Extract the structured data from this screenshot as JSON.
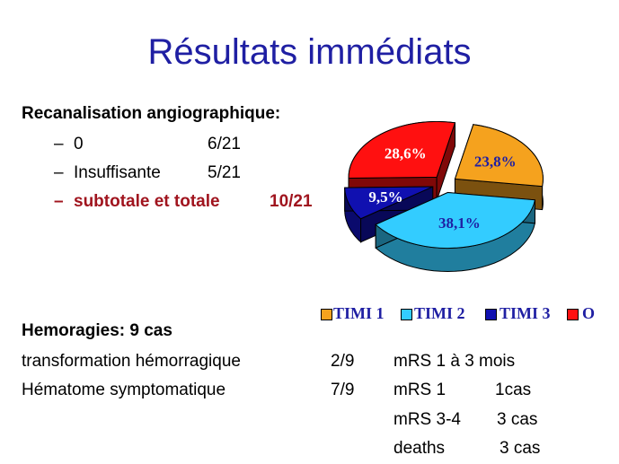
{
  "slide": {
    "title": "Résultats immédiats"
  },
  "recanalisation": {
    "heading": "Recanalisation angiographique:",
    "items": [
      {
        "dash": "–",
        "label": "0",
        "value": "6/21"
      },
      {
        "dash": "–",
        "label": "Insuffisante",
        "value": "5/21"
      },
      {
        "dash": "–",
        "label": "subtotale et totale",
        "value": "10/21"
      }
    ]
  },
  "hemorragies": {
    "heading": "Hemoragies: 9 cas",
    "rows": [
      {
        "label": "transformation hémorragique",
        "value": "2/9",
        "note": "mRS 1 à 3 mois"
      },
      {
        "label": "Hématome symptomatique",
        "value": "7/9",
        "note_a": "mRS 1",
        "note_b": "1cas"
      }
    ],
    "extra": [
      {
        "label": "mRS 3-4",
        "value": "3 cas"
      },
      {
        "label": "deaths",
        "value": "3 cas"
      }
    ]
  },
  "chart_data": {
    "type": "pie",
    "title": "",
    "legend_position": "bottom",
    "slices": [
      {
        "name": "TIMI 1",
        "value": 23.8,
        "label": "23,8%",
        "color": "#f5a21e"
      },
      {
        "name": "TIMI 2",
        "value": 38.1,
        "label": "38,1%",
        "color": "#33ccff"
      },
      {
        "name": "TIMI 3",
        "value": 9.5,
        "label": "9,5%",
        "color": "#1010b0"
      },
      {
        "name": "O",
        "value": 28.6,
        "label": "28,6%",
        "color": "#ff1010"
      }
    ],
    "label_colors": [
      "#1f1fa3",
      "#1f1fa3",
      "#ffffff",
      "#ffffff"
    ]
  }
}
